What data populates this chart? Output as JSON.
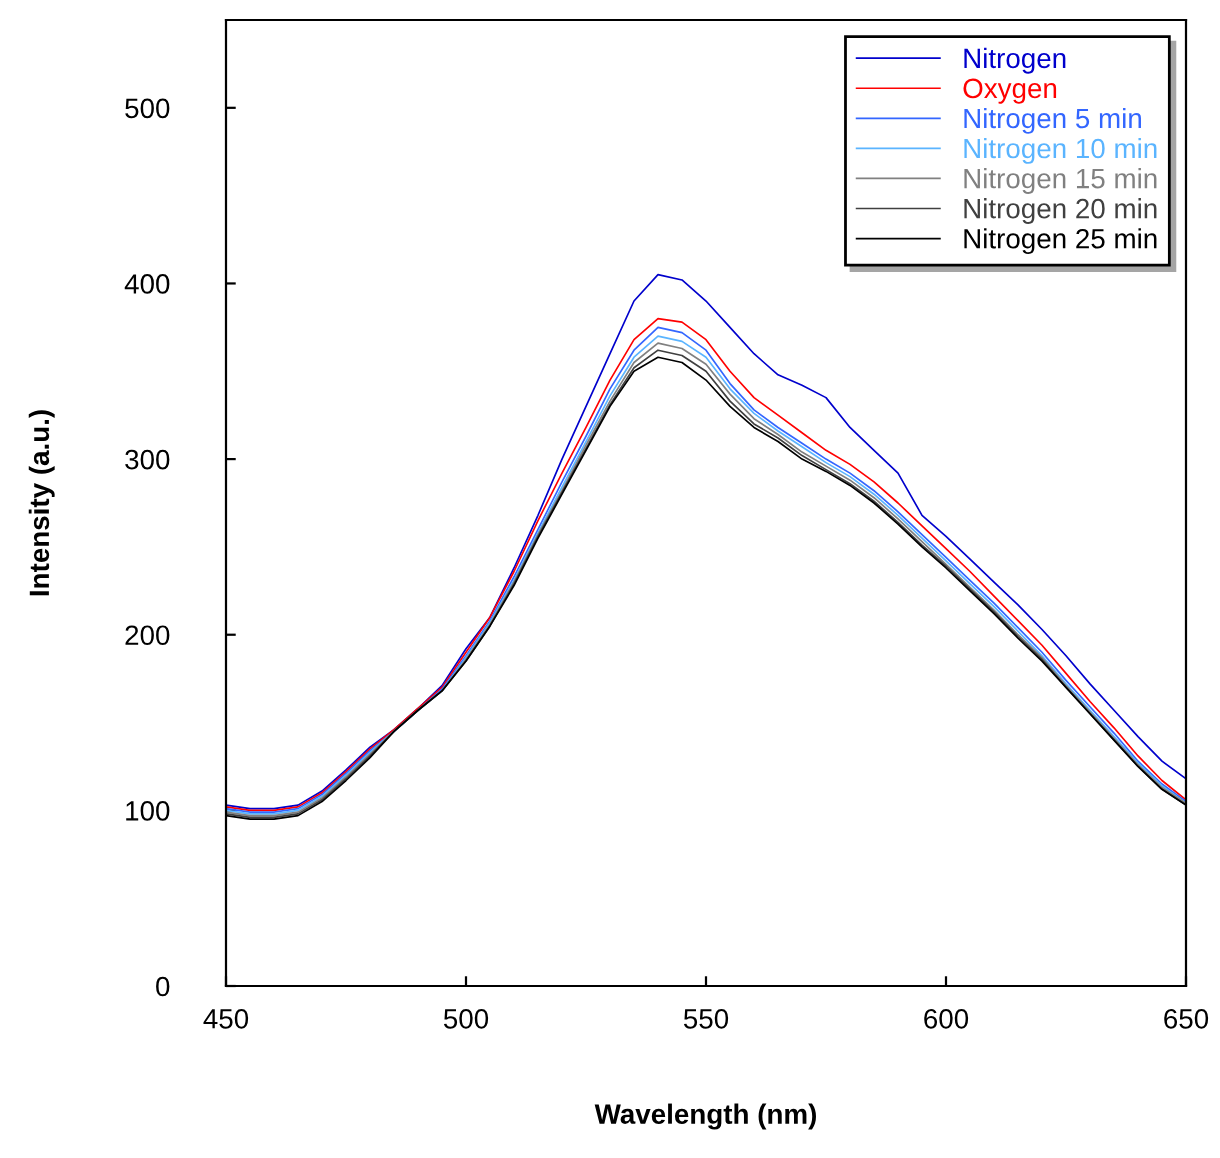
{
  "chart_data": {
    "type": "line",
    "xlabel": "Wavelength (nm)",
    "ylabel": "Intensity (a.u.)",
    "x": [
      450,
      455,
      460,
      465,
      470,
      475,
      480,
      485,
      490,
      495,
      500,
      505,
      510,
      515,
      520,
      525,
      530,
      535,
      540,
      545,
      550,
      555,
      560,
      565,
      570,
      575,
      580,
      585,
      590,
      595,
      600,
      605,
      610,
      615,
      620,
      625,
      630,
      635,
      640,
      645,
      650
    ],
    "xlim": [
      450,
      650
    ],
    "xticks": [
      450,
      500,
      550,
      600,
      650
    ],
    "ylim": [
      0,
      550
    ],
    "yticks": [
      0,
      100,
      200,
      300,
      400,
      500
    ],
    "grid": false,
    "legend": "top right",
    "marker": "none",
    "line_style": "solid",
    "series": [
      {
        "name": "Nitrogen",
        "color": "#0000cc",
        "values": [
          103,
          101,
          101,
          103,
          111,
          123,
          136,
          146,
          158,
          171,
          192,
          210,
          238,
          268,
          300,
          330,
          360,
          390,
          405,
          402,
          390,
          375,
          360,
          348,
          342,
          335,
          318,
          305,
          292,
          268,
          256,
          243,
          230,
          217,
          203,
          188,
          172,
          157,
          142,
          128,
          118
        ]
      },
      {
        "name": "Oxygen",
        "color": "#ff0000",
        "values": [
          102,
          100,
          100,
          102,
          110,
          122,
          135,
          146,
          158,
          170,
          190,
          210,
          236,
          265,
          292,
          318,
          345,
          368,
          380,
          378,
          368,
          350,
          335,
          325,
          315,
          305,
          297,
          287,
          275,
          262,
          249,
          236,
          222,
          208,
          194,
          178,
          162,
          147,
          131,
          117,
          106
        ]
      },
      {
        "name": "Nitrogen 5 min",
        "color": "#3366ff",
        "values": [
          101,
          99,
          99,
          101,
          109,
          121,
          134,
          145,
          157,
          169,
          188,
          208,
          233,
          260,
          287,
          313,
          340,
          362,
          375,
          372,
          362,
          343,
          328,
          318,
          309,
          300,
          292,
          282,
          270,
          257,
          244,
          231,
          218,
          204,
          190,
          174,
          159,
          144,
          128,
          115,
          105
        ]
      },
      {
        "name": "Nitrogen 10 min",
        "color": "#5ab4ff",
        "values": [
          100,
          98,
          98,
          100,
          108,
          120,
          133,
          145,
          157,
          168,
          187,
          207,
          231,
          258,
          284,
          310,
          336,
          358,
          370,
          367,
          358,
          340,
          326,
          316,
          307,
          298,
          290,
          280,
          268,
          255,
          242,
          229,
          216,
          202,
          188,
          172,
          157,
          142,
          127,
          114,
          104
        ]
      },
      {
        "name": "Nitrogen 15 min",
        "color": "#808080",
        "values": [
          99,
          97,
          97,
          99,
          107,
          119,
          132,
          145,
          157,
          168,
          186,
          206,
          230,
          257,
          282,
          308,
          333,
          355,
          366,
          363,
          354,
          337,
          323,
          314,
          304,
          296,
          288,
          278,
          266,
          253,
          240,
          227,
          214,
          200,
          187,
          171,
          156,
          141,
          126,
          113,
          104
        ]
      },
      {
        "name": "Nitrogen 20 min",
        "color": "#404040",
        "values": [
          98,
          96,
          96,
          98,
          106,
          118,
          131,
          145,
          157,
          168,
          185,
          205,
          229,
          256,
          281,
          306,
          331,
          352,
          362,
          359,
          350,
          333,
          320,
          312,
          302,
          294,
          286,
          276,
          264,
          251,
          239,
          226,
          213,
          199,
          186,
          170,
          155,
          140,
          125,
          112,
          103
        ]
      },
      {
        "name": "Nitrogen 25 min",
        "color": "#000000",
        "values": [
          97,
          95,
          95,
          97,
          105,
          117,
          130,
          145,
          157,
          168,
          185,
          205,
          228,
          255,
          280,
          305,
          330,
          350,
          358,
          355,
          345,
          330,
          318,
          310,
          300,
          293,
          285,
          275,
          263,
          250,
          238,
          225,
          212,
          198,
          185,
          170,
          155,
          140,
          125,
          112,
          103
        ]
      }
    ]
  }
}
